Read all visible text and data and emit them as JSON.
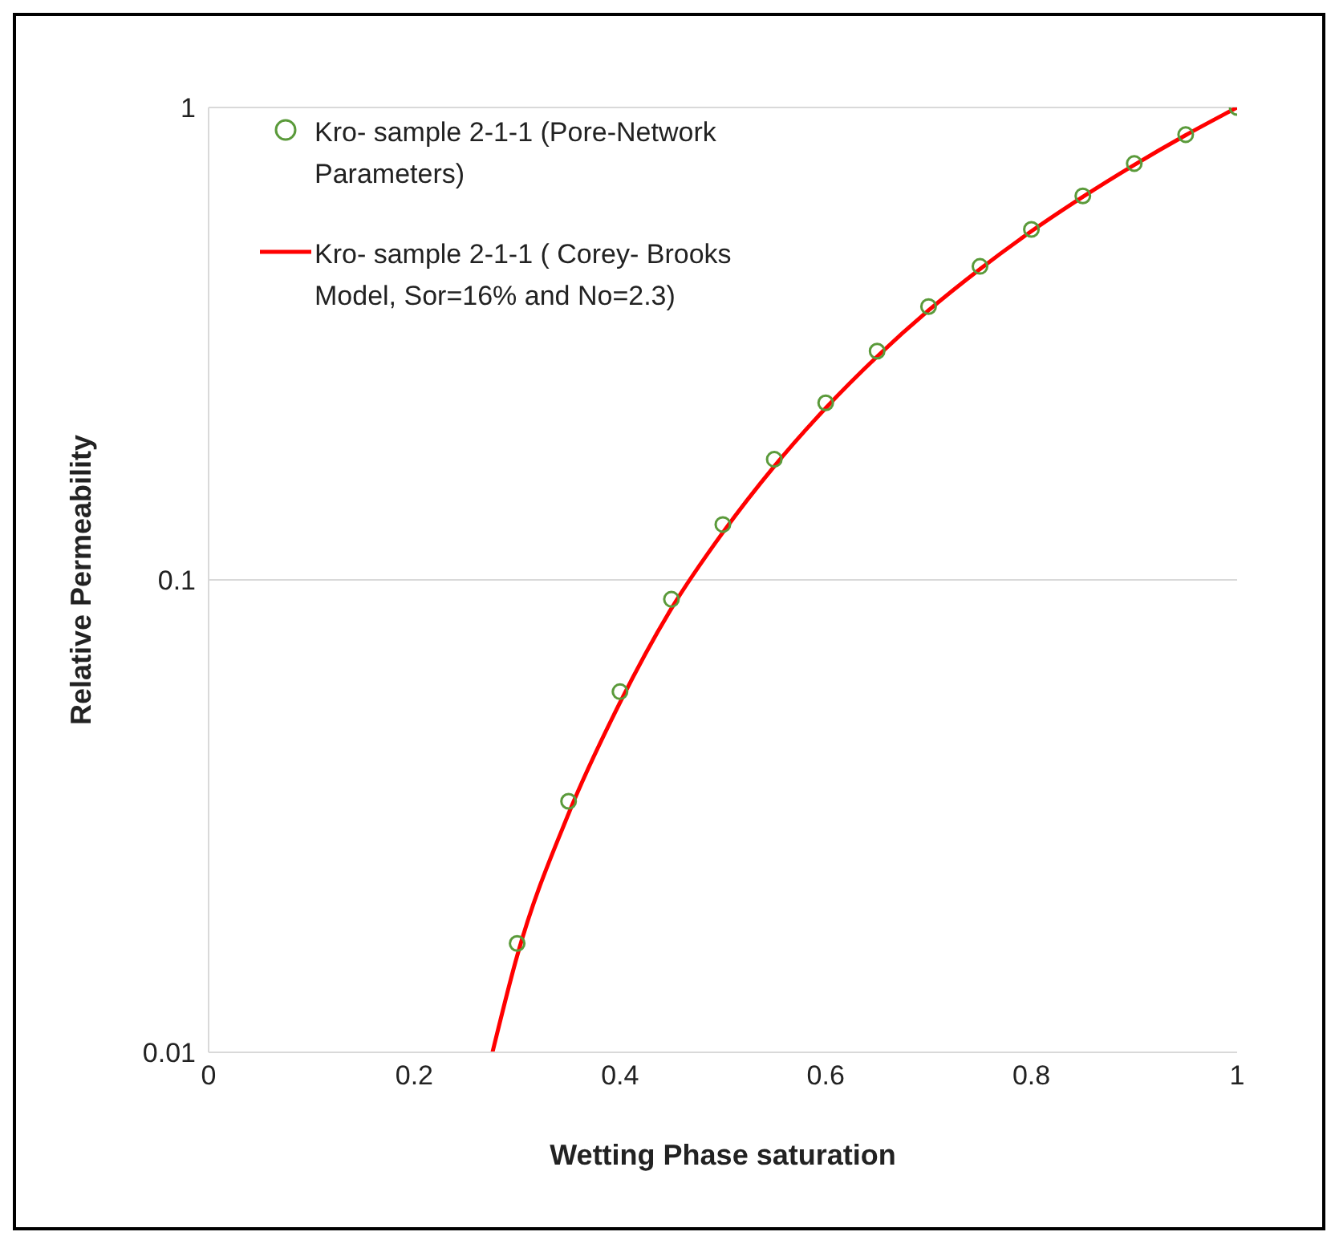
{
  "chart_data": {
    "type": "scatter",
    "xlabel": "Wetting Phase saturation",
    "ylabel": "Relative Permeability",
    "log": "y",
    "xlim": [
      0,
      1
    ],
    "xticks": [
      0,
      0.2,
      0.4,
      0.6,
      0.8,
      1
    ],
    "ylim": [
      0.01,
      1
    ],
    "yticks": [
      0.01,
      0.1,
      1
    ],
    "grid": "y",
    "legend": "top left",
    "series": [
      {
        "name": "Kro- sample 2-1-1 (Pore-Network Parameters)",
        "marker": "circle",
        "color": "#5a9a3a",
        "x": [
          0.3,
          0.35,
          0.4,
          0.45,
          0.5,
          0.55,
          0.6,
          0.65,
          0.7,
          0.75,
          0.8,
          0.85,
          0.9,
          0.95,
          1.0
        ],
        "values": [
          0.017,
          0.034,
          0.058,
          0.091,
          0.131,
          0.18,
          0.237,
          0.305,
          0.379,
          0.461,
          0.552,
          0.65,
          0.761,
          0.876,
          1.0
        ]
      },
      {
        "name": "Kro- sample 2-1-1 ( Corey- Brooks Model, Sor=16% and No=2.3)",
        "type": "line",
        "marker": "none",
        "line_style": "solid",
        "color": "#ff0000",
        "x": [
          0.276,
          0.3,
          0.35,
          0.4,
          0.45,
          0.5,
          0.55,
          0.6,
          0.65,
          0.7,
          0.75,
          0.8,
          0.85,
          0.9,
          0.95,
          1.0
        ],
        "values": [
          0.01,
          0.016,
          0.032,
          0.055,
          0.087,
          0.126,
          0.174,
          0.231,
          0.297,
          0.372,
          0.455,
          0.547,
          0.647,
          0.756,
          0.874,
          1.0
        ]
      }
    ]
  }
}
